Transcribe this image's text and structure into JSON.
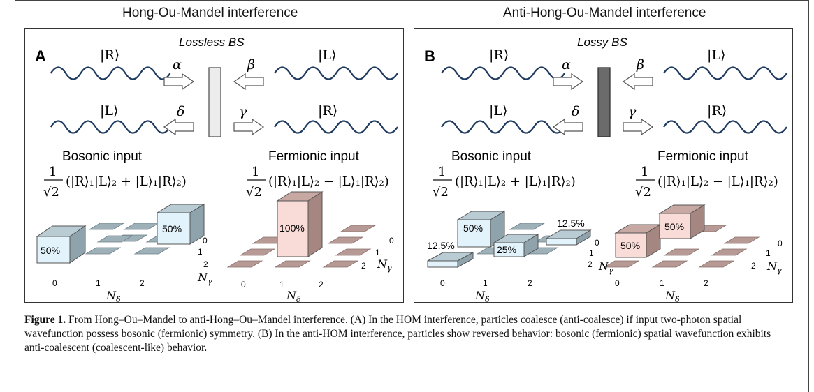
{
  "panels": [
    {
      "title": "Hong-Ou-Mandel interference",
      "letter": "A",
      "bs_label": "Lossless BS",
      "bs_color": "#ececec",
      "in_labels": {
        "top_left": "|R⟩",
        "top_right": "|L⟩",
        "bottom_left": "|L⟩",
        "bottom_right": "|R⟩"
      },
      "greek": {
        "alpha": "α",
        "beta": "β",
        "gamma": "γ",
        "delta": "δ"
      },
      "bosonic_label": "Bosonic input",
      "fermionic_label": "Fermionic input",
      "bosonic_formula": "(|R⟩₁|L⟩₂ + |L⟩₁|R⟩₂)",
      "fermionic_formula": "(|R⟩₁|L⟩₂ − |L⟩₁|R⟩₂)",
      "bosonic_bars": [
        "50%",
        "50%"
      ],
      "fermionic_bars": [
        "100%"
      ]
    },
    {
      "title": "Anti-Hong-Ou-Mandel interference",
      "letter": "B",
      "bs_label": "Lossy BS",
      "bs_color": "#6b6b6b",
      "in_labels": {
        "top_left": "|R⟩",
        "top_right": "|L⟩",
        "bottom_left": "|L⟩",
        "bottom_right": "|R⟩"
      },
      "greek": {
        "alpha": "α",
        "beta": "β",
        "gamma": "γ",
        "delta": "δ"
      },
      "bosonic_label": "Bosonic input",
      "fermionic_label": "Fermionic input",
      "bosonic_formula": "(|R⟩₁|L⟩₂ + |L⟩₁|R⟩₂)",
      "fermionic_formula": "(|R⟩₁|L⟩₂ − |L⟩₁|R⟩₂)",
      "bosonic_bars": [
        "50%",
        "25%",
        "12.5%",
        "12.5%"
      ],
      "fermionic_bars": [
        "50%",
        "50%"
      ]
    }
  ],
  "axis": {
    "tick0": "0",
    "tick1": "1",
    "tick2": "2",
    "n_delta": "N",
    "n_delta_sub": "δ",
    "n_gamma": "N",
    "n_gamma_sub": "γ"
  },
  "fraction": {
    "num": "1",
    "den": "√2"
  },
  "caption": {
    "label": "Figure 1.",
    "text": "From Hong–Ou–Mandel to anti-Hong–Ou–Mandel interference. (A) In the HOM interference, particles coalesce (anti-coalesce) if input two-photon spatial wavefunction possess bosonic (fermionic) symmetry. (B) In the anti-HOM interference, particles show reversed behavior: bosonic (fermionic) spatial wavefunction exhibits anti-coalescent (coalescent-like) behavior."
  },
  "colors": {
    "wave": "#1f3a5f",
    "blue_front": "#e3f3fb",
    "blue_side": "#8fa3ad",
    "blue_top": "#b9ccd4",
    "pink_front": "#f9dcd8",
    "pink_side": "#a58680",
    "pink_top": "#c7a8a3",
    "blue_tile": "#9eb0b8",
    "pink_tile": "#b79a95"
  }
}
